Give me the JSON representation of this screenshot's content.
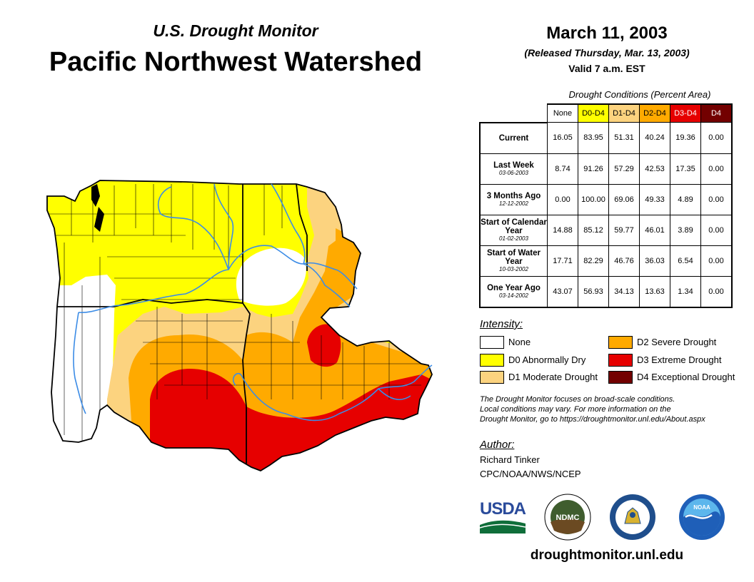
{
  "header": {
    "subtitle": "U.S. Drought Monitor",
    "title": "Pacific Northwest Watershed",
    "date": "March 11, 2003",
    "released": "(Released Thursday, Mar. 13, 2003)",
    "valid": "Valid 7 a.m. EST"
  },
  "table": {
    "caption": "Drought Conditions (Percent Area)",
    "columns": [
      "None",
      "D0-D4",
      "D1-D4",
      "D2-D4",
      "D3-D4",
      "D4"
    ],
    "rows": [
      {
        "label": "Current",
        "date": "",
        "values": [
          "16.05",
          "83.95",
          "51.31",
          "40.24",
          "19.36",
          "0.00"
        ]
      },
      {
        "label": "Last Week",
        "date": "03-06-2003",
        "values": [
          "8.74",
          "91.26",
          "57.29",
          "42.53",
          "17.35",
          "0.00"
        ]
      },
      {
        "label": "3 Months Ago",
        "date": "12-12-2002",
        "values": [
          "0.00",
          "100.00",
          "69.06",
          "49.33",
          "4.89",
          "0.00"
        ]
      },
      {
        "label": "Start of Calendar Year",
        "date": "01-02-2003",
        "values": [
          "14.88",
          "85.12",
          "59.77",
          "46.01",
          "3.89",
          "0.00"
        ]
      },
      {
        "label": "Start of Water Year",
        "date": "10-03-2002",
        "values": [
          "17.71",
          "82.29",
          "46.76",
          "36.03",
          "6.54",
          "0.00"
        ]
      },
      {
        "label": "One Year Ago",
        "date": "03-14-2002",
        "values": [
          "43.07",
          "56.93",
          "34.13",
          "13.63",
          "1.34",
          "0.00"
        ]
      }
    ]
  },
  "legend": {
    "title": "Intensity:",
    "items": [
      {
        "label": "None",
        "color": "#ffffff"
      },
      {
        "label": "D0 Abnormally Dry",
        "color": "#ffff00"
      },
      {
        "label": "D1 Moderate Drought",
        "color": "#fcd37f"
      },
      {
        "label": "D2 Severe Drought",
        "color": "#ffaa00"
      },
      {
        "label": "D3 Extreme Drought",
        "color": "#e60000"
      },
      {
        "label": "D4 Exceptional Drought",
        "color": "#730000"
      }
    ]
  },
  "note": {
    "line1": "The Drought Monitor focuses on broad-scale conditions.",
    "line2": "Local conditions may vary. For more information on the",
    "line3": "Drought Monitor, go to https://droughtmonitor.unl.edu/About.aspx"
  },
  "author": {
    "title": "Author:",
    "name": "Richard Tinker",
    "org": "CPC/NOAA/NWS/NCEP"
  },
  "logos": {
    "usda": "USDA",
    "ndmc": "NDMC",
    "noaa": "NOAA"
  },
  "footer": {
    "url": "droughtmonitor.unl.edu"
  },
  "map": {
    "colors": {
      "none": "#ffffff",
      "d0": "#ffff00",
      "d1": "#fcd37f",
      "d2": "#ffaa00",
      "d3": "#e60000",
      "river": "#3c8ce6",
      "border": "#000000"
    }
  }
}
